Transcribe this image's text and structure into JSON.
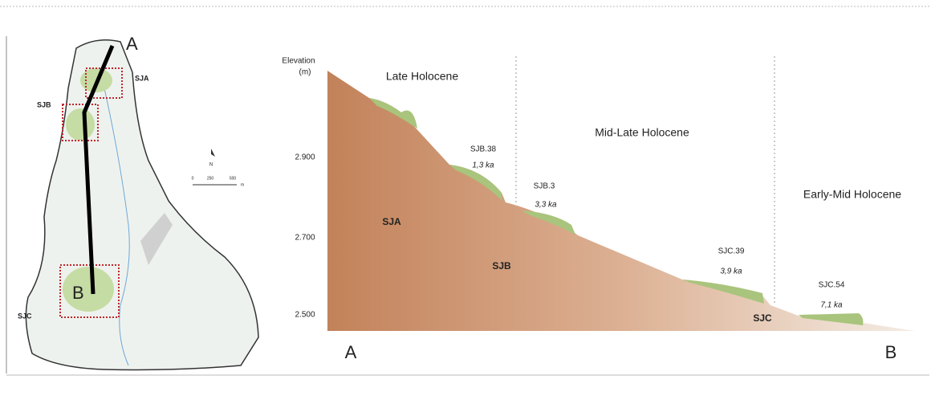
{
  "map": {
    "start_label": "A",
    "end_label": "B",
    "sites": [
      "SJA",
      "SJB",
      "SJC"
    ],
    "north": "N",
    "scale": [
      "0",
      "250",
      "500",
      "m"
    ]
  },
  "profile": {
    "axis_title": "Elevation",
    "axis_unit": "(m)",
    "ticks": [
      "2.900",
      "2.700",
      "2.500"
    ],
    "periods": [
      "Late Holocene",
      "Mid-Late Holocene",
      "Early-Mid Holocene"
    ],
    "samples": [
      {
        "id": "SJB.38",
        "age": "1,3 ka"
      },
      {
        "id": "SJB.3",
        "age": "3,3 ka"
      },
      {
        "id": "SJC.39",
        "age": "3,9 ka"
      },
      {
        "id": "SJC.54",
        "age": "7,1 ka"
      }
    ],
    "zones": [
      "SJA",
      "SJB",
      "SJC"
    ],
    "start_label": "A",
    "end_label": "B"
  }
}
